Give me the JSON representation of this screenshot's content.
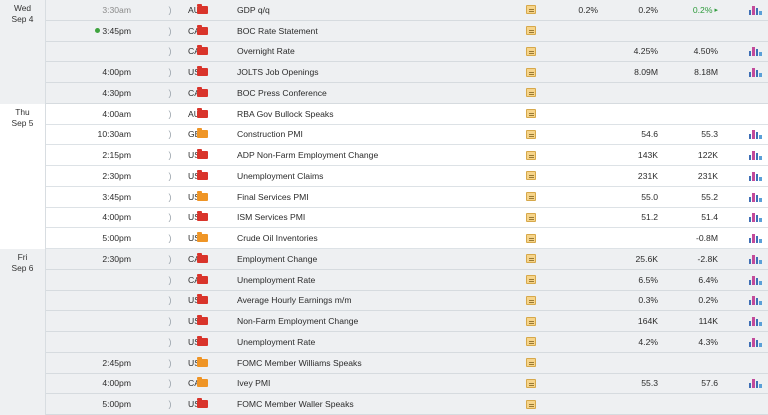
{
  "calendar": {
    "bell_glyph": "🔔",
    "days": [
      {
        "weekday": "Wed",
        "date": "Sep 4",
        "events": [
          {
            "time": "3:30am",
            "time_state": "past",
            "currency": "AUD",
            "impact": "high",
            "event": "GDP q/q",
            "note": true,
            "actual": "0.2%",
            "forecast": "0.2%",
            "previous": "0.2%",
            "previous_color": "green",
            "previous_revised": true,
            "chart": true
          },
          {
            "time": "3:45pm",
            "time_state": "live",
            "currency": "CAD",
            "impact": "high",
            "event": "BOC Rate Statement",
            "note": true,
            "actual": "",
            "forecast": "",
            "previous": "",
            "chart": false
          },
          {
            "time": "",
            "time_state": "normal",
            "currency": "CAD",
            "impact": "high",
            "event": "Overnight Rate",
            "note": true,
            "actual": "",
            "forecast": "4.25%",
            "previous": "4.50%",
            "chart": true
          },
          {
            "time": "4:00pm",
            "time_state": "normal",
            "currency": "USD",
            "impact": "high",
            "event": "JOLTS Job Openings",
            "note": true,
            "actual": "",
            "forecast": "8.09M",
            "previous": "8.18M",
            "chart": true
          },
          {
            "time": "4:30pm",
            "time_state": "normal",
            "currency": "CAD",
            "impact": "high",
            "event": "BOC Press Conference",
            "note": true,
            "actual": "",
            "forecast": "",
            "previous": "",
            "chart": false
          }
        ]
      },
      {
        "weekday": "Thu",
        "date": "Sep 5",
        "events": [
          {
            "time": "4:00am",
            "time_state": "normal",
            "currency": "AUD",
            "impact": "high",
            "event": "RBA Gov Bullock Speaks",
            "note": true,
            "actual": "",
            "forecast": "",
            "previous": "",
            "chart": false
          },
          {
            "time": "10:30am",
            "time_state": "normal",
            "currency": "GBP",
            "impact": "medium",
            "event": "Construction PMI",
            "note": true,
            "actual": "",
            "forecast": "54.6",
            "previous": "55.3",
            "chart": true
          },
          {
            "time": "2:15pm",
            "time_state": "normal",
            "currency": "USD",
            "impact": "high",
            "event": "ADP Non-Farm Employment Change",
            "note": true,
            "actual": "",
            "forecast": "143K",
            "previous": "122K",
            "chart": true
          },
          {
            "time": "2:30pm",
            "time_state": "normal",
            "currency": "USD",
            "impact": "high",
            "event": "Unemployment Claims",
            "note": true,
            "actual": "",
            "forecast": "231K",
            "previous": "231K",
            "chart": true
          },
          {
            "time": "3:45pm",
            "time_state": "normal",
            "currency": "USD",
            "impact": "medium",
            "event": "Final Services PMI",
            "note": true,
            "actual": "",
            "forecast": "55.0",
            "previous": "55.2",
            "chart": true
          },
          {
            "time": "4:00pm",
            "time_state": "normal",
            "currency": "USD",
            "impact": "high",
            "event": "ISM Services PMI",
            "note": true,
            "actual": "",
            "forecast": "51.2",
            "previous": "51.4",
            "chart": true
          },
          {
            "time": "5:00pm",
            "time_state": "normal",
            "currency": "USD",
            "impact": "medium",
            "event": "Crude Oil Inventories",
            "note": true,
            "actual": "",
            "forecast": "",
            "previous": "-0.8M",
            "chart": true
          }
        ]
      },
      {
        "weekday": "Fri",
        "date": "Sep 6",
        "events": [
          {
            "time": "2:30pm",
            "time_state": "normal",
            "currency": "CAD",
            "impact": "high",
            "event": "Employment Change",
            "note": true,
            "actual": "",
            "forecast": "25.6K",
            "previous": "-2.8K",
            "chart": true
          },
          {
            "time": "",
            "time_state": "normal",
            "currency": "CAD",
            "impact": "high",
            "event": "Unemployment Rate",
            "note": true,
            "actual": "",
            "forecast": "6.5%",
            "previous": "6.4%",
            "chart": true
          },
          {
            "time": "",
            "time_state": "normal",
            "currency": "USD",
            "impact": "high",
            "event": "Average Hourly Earnings m/m",
            "note": true,
            "actual": "",
            "forecast": "0.3%",
            "previous": "0.2%",
            "chart": true
          },
          {
            "time": "",
            "time_state": "normal",
            "currency": "USD",
            "impact": "high",
            "event": "Non-Farm Employment Change",
            "note": true,
            "actual": "",
            "forecast": "164K",
            "previous": "114K",
            "chart": true
          },
          {
            "time": "",
            "time_state": "normal",
            "currency": "USD",
            "impact": "high",
            "event": "Unemployment Rate",
            "note": true,
            "actual": "",
            "forecast": "4.2%",
            "previous": "4.3%",
            "chart": true
          },
          {
            "time": "2:45pm",
            "time_state": "normal",
            "currency": "USD",
            "impact": "medium",
            "event": "FOMC Member Williams Speaks",
            "note": true,
            "actual": "",
            "forecast": "",
            "previous": "",
            "chart": false
          },
          {
            "time": "4:00pm",
            "time_state": "normal",
            "currency": "CAD",
            "impact": "medium",
            "event": "Ivey PMI",
            "note": true,
            "actual": "",
            "forecast": "55.3",
            "previous": "57.6",
            "chart": true
          },
          {
            "time": "5:00pm",
            "time_state": "normal",
            "currency": "USD",
            "impact": "high",
            "event": "FOMC Member Waller Speaks",
            "note": true,
            "actual": "",
            "forecast": "",
            "previous": "",
            "chart": false
          }
        ]
      }
    ]
  }
}
